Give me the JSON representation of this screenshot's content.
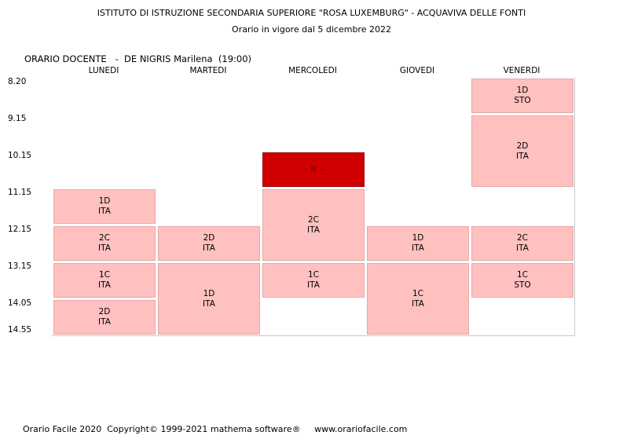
{
  "header": {
    "title": "ISTITUTO DI ISTRUZIONE SECONDARIA SUPERIORE \"ROSA LUXEMBURG\" - ACQUAVIVA DELLE FONTI",
    "subtitle": "Orario in vigore dal 5 dicembre 2022"
  },
  "teacher": {
    "label": "ORARIO DOCENTE   -  DE NIGRIS Marilena  (19:00)"
  },
  "days": [
    "LUNEDI",
    "MARTEDI",
    "MERCOLEDI",
    "GIOVEDI",
    "VENERDI"
  ],
  "times": [
    "8.20",
    "9.15",
    "10.15",
    "11.15",
    "12.15",
    "13.15",
    "14.05",
    "14.55"
  ],
  "lessons": [
    {
      "day": 4,
      "start": 0,
      "span": 1,
      "class": "1D",
      "subject": "STO",
      "style": "light"
    },
    {
      "day": 4,
      "start": 1,
      "span": 2,
      "class": "2D",
      "subject": "ITA",
      "style": "light"
    },
    {
      "day": 2,
      "start": 2,
      "span": 1,
      "class": "",
      "subject": "-- R --",
      "style": "dark"
    },
    {
      "day": 0,
      "start": 3,
      "span": 1,
      "class": "1D",
      "subject": "ITA",
      "style": "light"
    },
    {
      "day": 2,
      "start": 3,
      "span": 2,
      "class": "2C",
      "subject": "ITA",
      "style": "light"
    },
    {
      "day": 0,
      "start": 4,
      "span": 1,
      "class": "2C",
      "subject": "ITA",
      "style": "light"
    },
    {
      "day": 1,
      "start": 4,
      "span": 1,
      "class": "2D",
      "subject": "ITA",
      "style": "light"
    },
    {
      "day": 3,
      "start": 4,
      "span": 1,
      "class": "1D",
      "subject": "ITA",
      "style": "light"
    },
    {
      "day": 4,
      "start": 4,
      "span": 1,
      "class": "2C",
      "subject": "ITA",
      "style": "light"
    },
    {
      "day": 0,
      "start": 5,
      "span": 1,
      "class": "1C",
      "subject": "ITA",
      "style": "light"
    },
    {
      "day": 1,
      "start": 5,
      "span": 2,
      "class": "1D",
      "subject": "ITA",
      "style": "light"
    },
    {
      "day": 2,
      "start": 5,
      "span": 1,
      "class": "1C",
      "subject": "ITA",
      "style": "light"
    },
    {
      "day": 3,
      "start": 5,
      "span": 2,
      "class": "1C",
      "subject": "ITA",
      "style": "light"
    },
    {
      "day": 4,
      "start": 5,
      "span": 1,
      "class": "1C",
      "subject": "STO",
      "style": "light"
    },
    {
      "day": 0,
      "start": 6,
      "span": 1,
      "class": "2D",
      "subject": "ITA",
      "style": "light"
    }
  ],
  "colors": {
    "lesson_fill": "#ffc0c0",
    "special_fill": "#d00000",
    "grid_line": "#c8c8c8"
  },
  "footer": {
    "text": "Orario Facile 2020  Copyright© 1999-2021 mathema software®     www.orariofacile.com"
  }
}
